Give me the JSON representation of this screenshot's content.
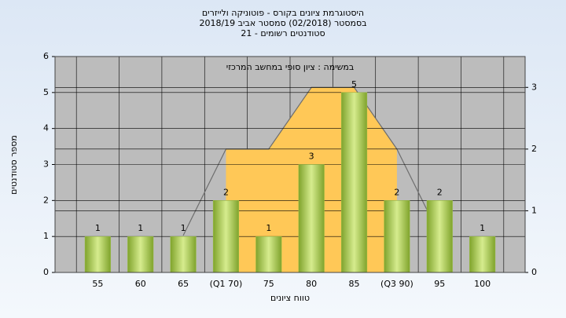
{
  "chart_data": {
    "type": "bar",
    "title": [
      "היסטוגרמת ציונים בקורס - פוטוניקה ולייזרים",
      "בסמסטר  (02/2018)  סמסטר אביב 2018/19",
      "סטודנטים רשומים - 21"
    ],
    "annotation": "במשימה : ציון סופי במחשב המרכזי",
    "x_label": "טווח ציונים",
    "y_label": "מספר סטודנטים",
    "categories": [
      "55",
      "60",
      "65",
      "(Q1 70)",
      "75",
      "80",
      "85",
      "(Q3 90)",
      "95",
      "100"
    ],
    "series": [
      {
        "color": "#9bc046",
        "values": [
          1,
          1,
          1,
          2,
          1,
          3,
          5,
          2,
          2,
          1
        ]
      },
      {
        "type": "area",
        "axis": "y2",
        "color": "#ffc857",
        "values": [
          null,
          null,
          null,
          2,
          2,
          3,
          3,
          2,
          null,
          null
        ]
      },
      {
        "type": "line",
        "axis": "y2",
        "color": "#6e6e6e",
        "values": [
          null,
          null,
          0.6,
          2,
          2,
          3,
          3,
          2,
          0.6,
          null
        ]
      }
    ],
    "ylim": [
      0,
      6
    ],
    "yticks": [
      0,
      1,
      2,
      3,
      4,
      5,
      6
    ],
    "y2lim": [
      0,
      3.5
    ],
    "y2ticks": [
      0,
      1,
      2,
      3
    ],
    "grid": true
  }
}
